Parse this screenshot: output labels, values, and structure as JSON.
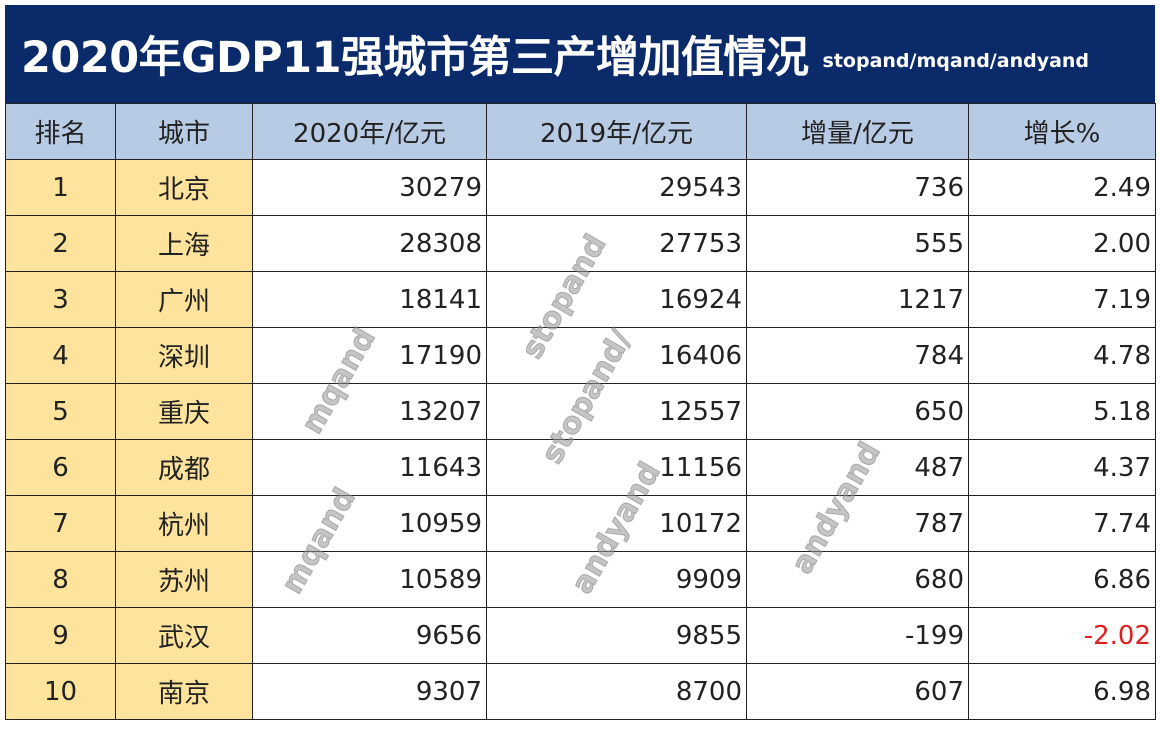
{
  "title": {
    "main": "2020年GDP11强城市第三产增加值情况",
    "sub": "stopand/mqand/andyand"
  },
  "table": {
    "headers": [
      "排名",
      "城市",
      "2020年/亿元",
      "2019年/亿元",
      "增量/亿元",
      "增长%"
    ],
    "rows": [
      [
        "1",
        "北京",
        "30279",
        "29543",
        "736",
        "2.49"
      ],
      [
        "2",
        "上海",
        "28308",
        "27753",
        "555",
        "2.00"
      ],
      [
        "3",
        "广州",
        "18141",
        "16924",
        "1217",
        "7.19"
      ],
      [
        "4",
        "深圳",
        "17190",
        "16406",
        "784",
        "4.78"
      ],
      [
        "5",
        "重庆",
        "13207",
        "12557",
        "650",
        "5.18"
      ],
      [
        "6",
        "成都",
        "11643",
        "11156",
        "487",
        "4.37"
      ],
      [
        "7",
        "杭州",
        "10959",
        "10172",
        "787",
        "7.74"
      ],
      [
        "8",
        "苏州",
        "10589",
        "9909",
        "680",
        "6.86"
      ],
      [
        "9",
        "武汉",
        "9656",
        "9855",
        "-199",
        "-2.02"
      ],
      [
        "10",
        "南京",
        "9307",
        "8700",
        "607",
        "6.98"
      ]
    ]
  },
  "colors": {
    "title_bg": "#0b2a6a",
    "header_bg": "#b8cbe4",
    "rank_bg": "#fde39c",
    "negative": "#e02020"
  },
  "watermarks": [
    "stopand",
    "stopand/",
    "mqand",
    "mqand",
    "andyand",
    "andyand"
  ]
}
